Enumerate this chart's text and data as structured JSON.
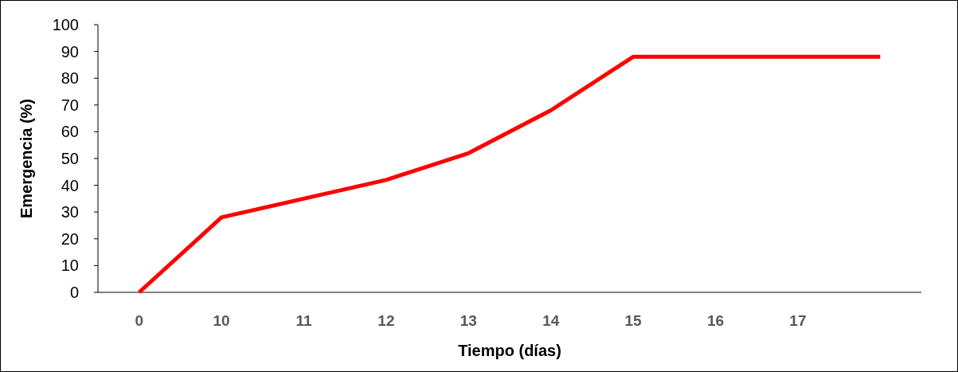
{
  "chart_data": {
    "type": "line",
    "xlabel": "Tiempo (días)",
    "ylabel": "Emergencia (%)",
    "categories": [
      "0",
      "10",
      "11",
      "12",
      "13",
      "14",
      "15",
      "16",
      "17",
      null
    ],
    "series": [
      {
        "color": "#ff0000",
        "values": [
          0,
          28,
          35,
          42,
          52,
          68,
          88,
          88,
          88,
          88
        ]
      }
    ],
    "ylim": [
      0,
      100
    ],
    "yticks": [
      0,
      10,
      20,
      30,
      40,
      50,
      60,
      70,
      80,
      90,
      100
    ],
    "grid": false,
    "marker": "none",
    "line_style": "solid"
  }
}
